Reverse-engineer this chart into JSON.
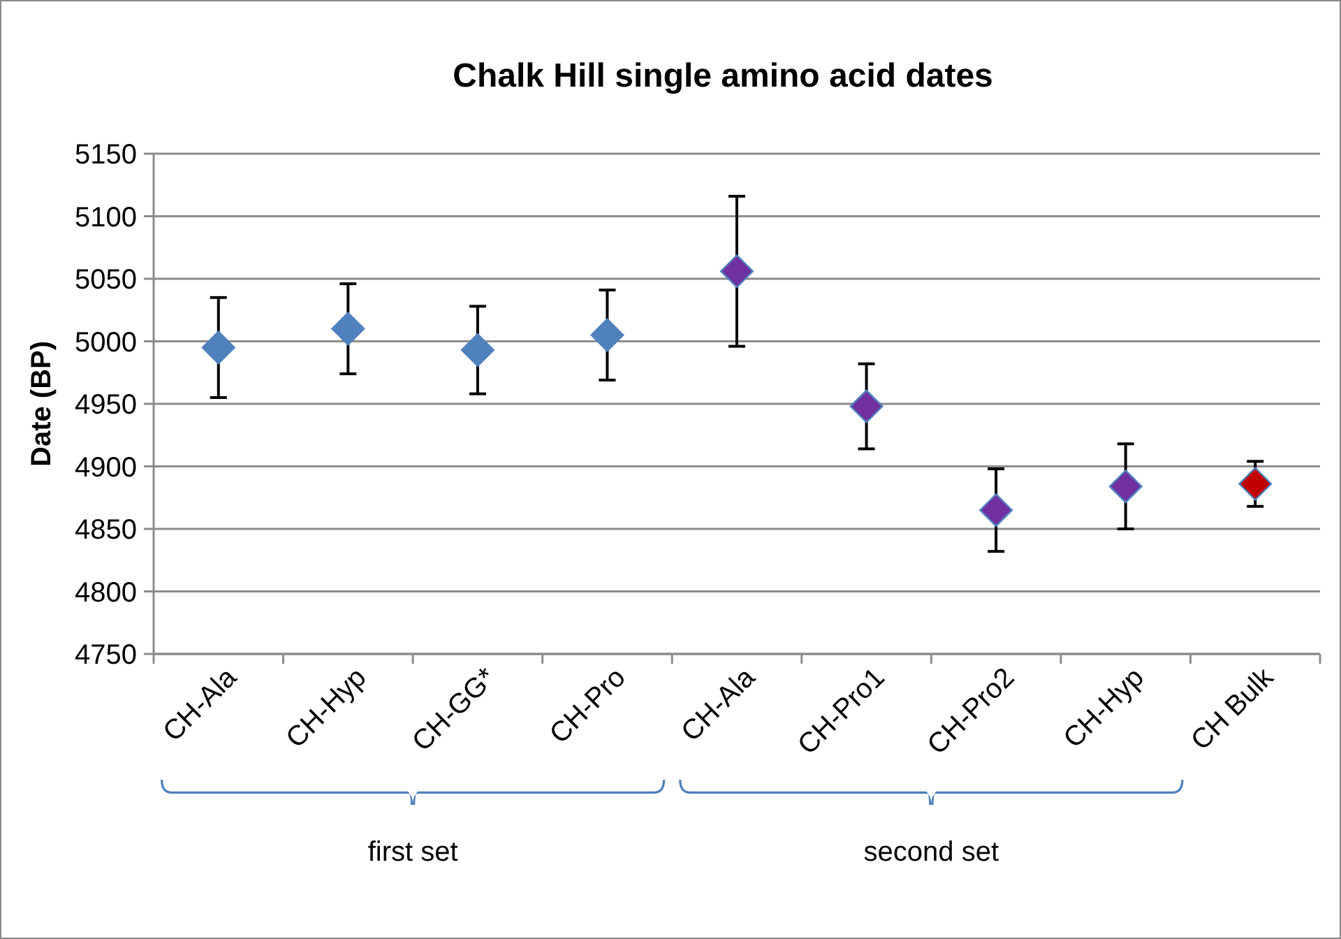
{
  "chart_data": {
    "type": "scatter",
    "title": "Chalk Hill single amino acid dates",
    "ylabel": "Date (BP)",
    "categories": [
      "CH-Ala",
      "CH-Hyp",
      "CH-GG*",
      "CH-Pro",
      "CH-Ala",
      "CH-Pro1",
      "CH-Pro2",
      "CH-Hyp",
      "CH Bulk"
    ],
    "values": [
      4995,
      5010,
      4993,
      5005,
      5056,
      4948,
      4865,
      4884,
      4886
    ],
    "errors": [
      40,
      36,
      35,
      36,
      60,
      34,
      33,
      34,
      18
    ],
    "colors": [
      "#4f81bd",
      "#4f81bd",
      "#4f81bd",
      "#4f81bd",
      "#7030a0",
      "#7030a0",
      "#7030a0",
      "#7030a0",
      "#c00000"
    ],
    "ylim": [
      4750,
      5150
    ],
    "yticks": [
      4750,
      4800,
      4850,
      4900,
      4950,
      5000,
      5050,
      5100,
      5150
    ],
    "grid": "y",
    "marker": "diamond",
    "annotations": [
      "first set",
      "second set"
    ]
  }
}
